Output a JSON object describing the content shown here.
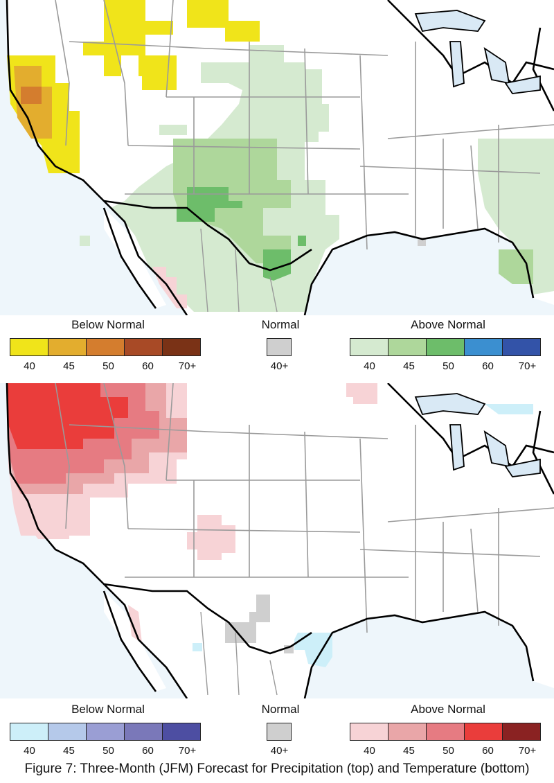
{
  "maps": {
    "precip": {
      "legend": {
        "below": {
          "title": "Below Normal",
          "colors": [
            "#f0e41a",
            "#e3ad2e",
            "#d47d2e",
            "#a84a26",
            "#7a3216"
          ],
          "labels": [
            "40",
            "45",
            "50",
            "60",
            "70+"
          ]
        },
        "normal": {
          "title": "Normal",
          "color": "#cfcfcf",
          "label": "40+"
        },
        "above": {
          "title": "Above Normal",
          "colors": [
            "#d5ead0",
            "#aed79b",
            "#6dbd6a",
            "#3b8fd0",
            "#3353a8"
          ],
          "labels": [
            "40",
            "45",
            "50",
            "60",
            "70+"
          ]
        }
      }
    },
    "temp": {
      "legend": {
        "below": {
          "title": "Below Normal",
          "colors": [
            "#cdeff9",
            "#b5c9ea",
            "#9a9ed4",
            "#7a78b9",
            "#4d4ea2"
          ],
          "labels": [
            "40",
            "45",
            "50",
            "60",
            "70+"
          ]
        },
        "normal": {
          "title": "Normal",
          "color": "#cfcfcf",
          "label": "40+"
        },
        "above": {
          "title": "Above Normal",
          "colors": [
            "#f7d3d6",
            "#e9a6a8",
            "#e67b82",
            "#ea3d3b",
            "#8a2222"
          ],
          "labels": [
            "40",
            "45",
            "50",
            "60",
            "70+"
          ]
        }
      }
    }
  },
  "caption": "Figure 7: Three-Month (JFM) Forecast for Precipitation (top) and Temperature (bottom)"
}
